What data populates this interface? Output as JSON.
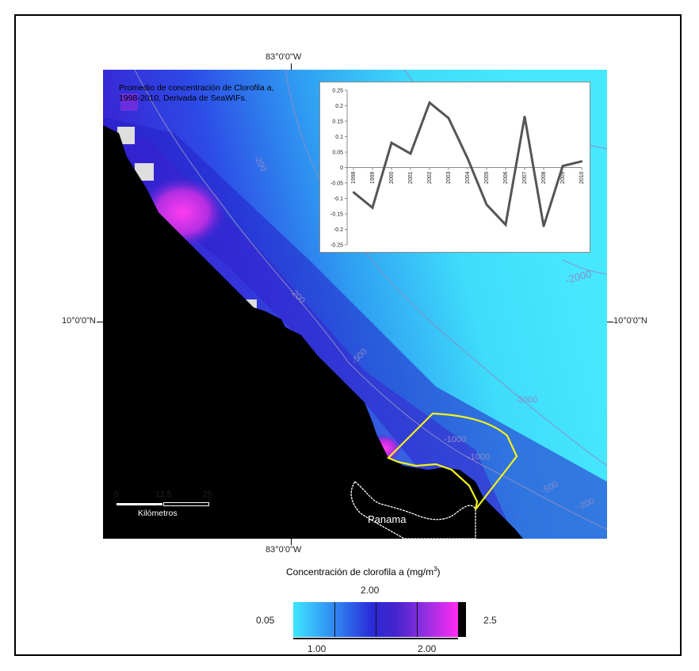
{
  "map": {
    "title_line1": "Promedio de concentración de Clorofila a,",
    "title_line2": "1998-2010, Derivada de SeaWIFs.",
    "lon_label_top": "83°0'0\"W",
    "lon_label_bottom": "83°0'0\"W",
    "lat_label_left": "10°0'0\"N",
    "lat_label_right": "10°0'0\"N",
    "place_label": "Panama",
    "contours": [
      "-200",
      "-200",
      "-500",
      "-1000",
      "-2000",
      "-2000",
      "-1000",
      "-500",
      "-200"
    ]
  },
  "scale_bar": {
    "tick_0": "0",
    "tick_1": "12.5",
    "tick_2": "25",
    "unit": "Kilómetros"
  },
  "legend": {
    "title": "Concentración de clorofila a (mg/m",
    "title_sup": "3",
    "title_close": ")",
    "label_min": "0.05",
    "label_max": "2.5",
    "label_top": "2.00",
    "label_bottom_1": "1.00",
    "label_bottom_2": "2.00",
    "colors": [
      "#3ee6ff",
      "#2e7cf0",
      "#2a2ad8",
      "#4424cc",
      "#8a2ee0",
      "#ff2cf2"
    ]
  },
  "chart_data": {
    "type": "line",
    "categories": [
      "1998",
      "1999",
      "2000",
      "2001",
      "2002",
      "2003",
      "2004",
      "2005",
      "2006",
      "2007",
      "2008",
      "2009",
      "2010"
    ],
    "values": [
      -0.08,
      -0.13,
      0.08,
      0.045,
      0.21,
      0.16,
      0.03,
      -0.12,
      -0.185,
      0.165,
      -0.19,
      0.005,
      0.02
    ],
    "ylim": [
      -0.25,
      0.25
    ],
    "yticks": [
      "0.25",
      "0.2",
      "0.15",
      "0.1",
      "0.05",
      "0",
      "-0.05",
      "-0.1",
      "-0.15",
      "-0.2",
      "-0.25"
    ],
    "grid": false,
    "line_color": "#555555"
  }
}
